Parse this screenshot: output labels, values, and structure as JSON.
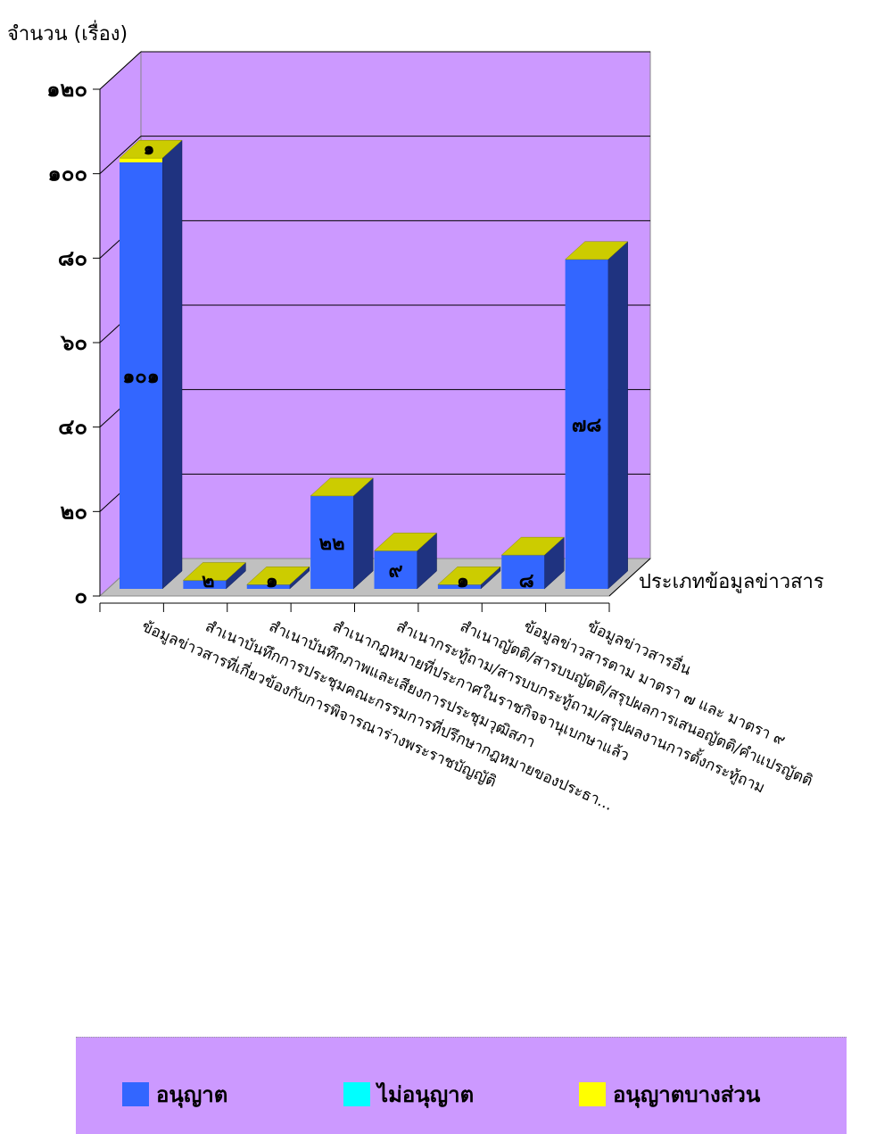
{
  "chart_data": {
    "type": "bar",
    "ylabel": "จำนวน (เรื่อง)",
    "xlabel": "ประเภทข้อมูลข่าวสาร",
    "ylim": [
      0,
      120
    ],
    "yticks": [
      "๐",
      "๒๐",
      "๔๐",
      "๖๐",
      "๘๐",
      "๑๐๐",
      "๑๒๐"
    ],
    "categories": [
      "ข้อมูลข่าวสารที่เกี่ยวข้องกับการพิจารณาร่างพระราชบัญญัติ",
      "สำเนาบันทึกการประชุมคณะกรรมการที่ปรึกษากฎหมายของประธา...",
      "สำเนาบันทึกภาพและเสียงการประชุมวุฒิสภา",
      "สำเนากฎหมายที่ประกาศในราชกิจจานุเบกษาแล้ว",
      "สำเนากระทู้ถาม/สารบบกระทู้ถาม/สรุปผลงานการตั้งกระทู้ถาม",
      "สำเนาญัตติ/สารบบญัตติ/สรุปผลการเสนอญัตติ/คำแปรญัตติ",
      "ข้อมูลข่าวสารตาม มาตรา ๗ และ มาตรา ๙",
      "ข้อมูลข่าวสารอื่น"
    ],
    "series": [
      {
        "name": "อนุญาต",
        "color": "#3366ff",
        "values": [
          101,
          2,
          1,
          22,
          9,
          1,
          8,
          78
        ],
        "labels": [
          "๑๐๑",
          "๒",
          "๑",
          "๒๒",
          "๙",
          "๑",
          "๘",
          "๗๘"
        ]
      },
      {
        "name": "ไม่อนุญาต",
        "color": "#00ffff",
        "values": [
          0,
          0,
          0,
          0,
          0,
          0,
          0,
          0
        ],
        "labels": [
          "",
          "",
          "",
          "",
          "",
          "",
          "",
          ""
        ]
      },
      {
        "name": "อนุญาตบางส่วน",
        "color": "#ffff00",
        "values": [
          1,
          0,
          0,
          0,
          0,
          0,
          0,
          0
        ],
        "labels": [
          "๑",
          "",
          "",
          "",
          "",
          "",
          "",
          ""
        ]
      }
    ],
    "colors": {
      "wall": "#cc99ff",
      "floor": "#c0c0c0",
      "top": "#cccc00",
      "side": "#1f3380"
    },
    "grid": true,
    "legend": "bottom"
  }
}
